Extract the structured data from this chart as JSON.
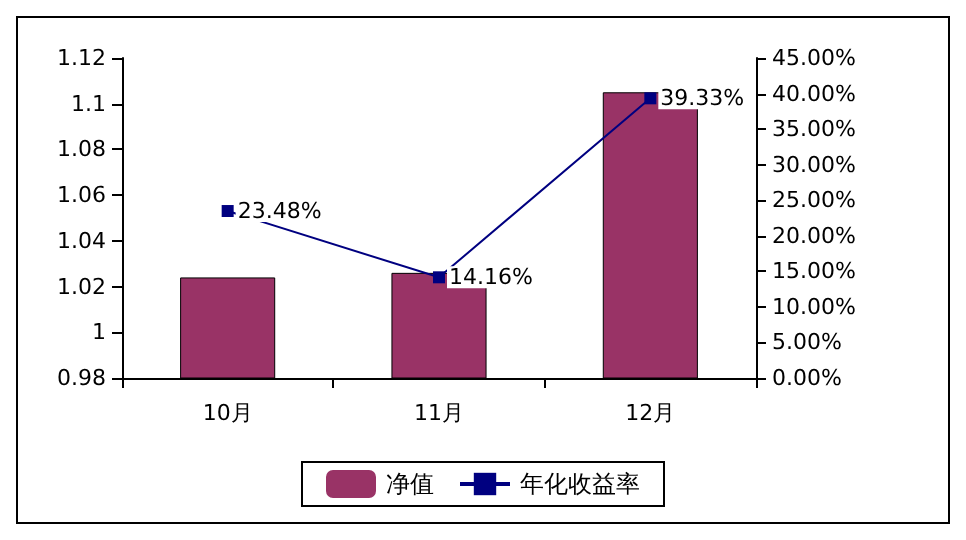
{
  "chart_data": {
    "type": "bar",
    "categories": [
      "10月",
      "11月",
      "12月"
    ],
    "series": [
      {
        "name": "净值",
        "color": "#993366",
        "values": [
          1.024,
          1.026,
          1.105
        ]
      },
      {
        "name": "年化收益率",
        "type": "line",
        "axis": "y2",
        "color": "#000080",
        "values": [
          23.48,
          14.16,
          39.33
        ],
        "value_labels": [
          "23.48%",
          "14.16%",
          "39.33%"
        ]
      }
    ],
    "ylim": [
      0.98,
      1.12
    ],
    "yticks": [
      0.98,
      1,
      1.02,
      1.04,
      1.06,
      1.08,
      1.1,
      1.12
    ],
    "y2lim": [
      0,
      45
    ],
    "y2ticks": [
      {
        "value": 0,
        "label": "0.00%"
      },
      {
        "value": 5,
        "label": "5.00%"
      },
      {
        "value": 10,
        "label": "10.00%"
      },
      {
        "value": 15,
        "label": "15.00%"
      },
      {
        "value": 20,
        "label": "20.00%"
      },
      {
        "value": 25,
        "label": "25.00%"
      },
      {
        "value": 30,
        "label": "30.00%"
      },
      {
        "value": 35,
        "label": "35.00%"
      },
      {
        "value": 40,
        "label": "40.00%"
      },
      {
        "value": 45,
        "label": "45.00%"
      }
    ],
    "grid": false,
    "legend": "bottom",
    "marker": "square",
    "line_style": "solid"
  }
}
